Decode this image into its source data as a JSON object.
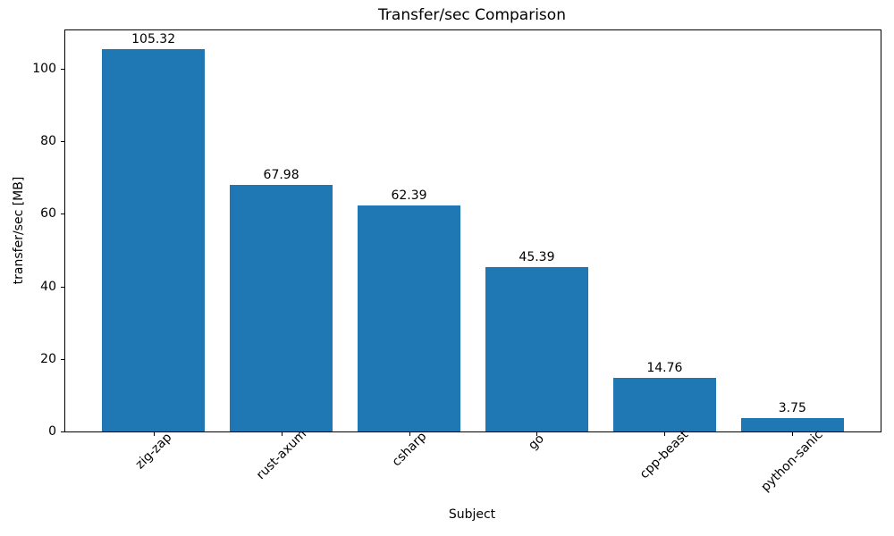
{
  "chart_data": {
    "type": "bar",
    "title": "Transfer/sec Comparison",
    "xlabel": "Subject",
    "ylabel": "transfer/sec [MB]",
    "categories": [
      "zig-zap",
      "rust-axum",
      "csharp",
      "go",
      "cpp-beast",
      "python-sanic"
    ],
    "values": [
      105.32,
      67.98,
      62.39,
      45.39,
      14.76,
      3.75
    ],
    "bar_labels": [
      "105.32",
      "67.98",
      "62.39",
      "45.39",
      "14.76",
      "3.75"
    ],
    "y_ticks": [
      0,
      20,
      40,
      60,
      80,
      100
    ],
    "ylim": [
      0,
      110.59
    ],
    "xlim": [
      -0.69,
      5.69
    ],
    "bar_width_units": 0.8,
    "x_tick_rotation_deg": -45,
    "bar_color": "#1f77b4",
    "text_color": "#000000",
    "spine_color": "#000000",
    "background_color": "#ffffff",
    "grid": false,
    "legend_position": "none"
  }
}
